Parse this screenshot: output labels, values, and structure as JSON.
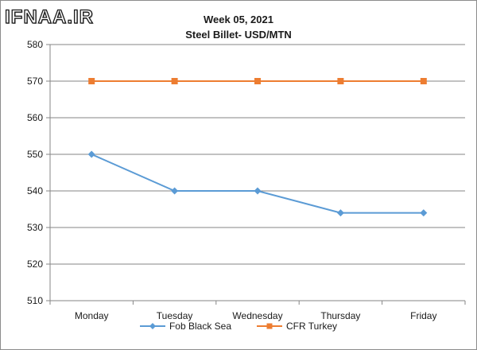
{
  "watermark": "IFNAA.IR",
  "chart_data": {
    "type": "line",
    "title": "Week 05, 2021",
    "subtitle": "Steel Billet- USD/MTN",
    "categories": [
      "Monday",
      "Tuesday",
      "Wednesday",
      "Thursday",
      "Friday"
    ],
    "yticks": [
      "510",
      "520",
      "530",
      "540",
      "550",
      "560",
      "570",
      "580"
    ],
    "ylim": [
      510,
      580
    ],
    "grid": true,
    "legend_position": "bottom",
    "series": [
      {
        "name": "Fob Black Sea",
        "values": [
          550,
          540,
          540,
          534,
          534
        ],
        "color": "#5b9bd5",
        "marker": "diamond"
      },
      {
        "name": "CFR Turkey",
        "values": [
          570,
          570,
          570,
          570,
          570
        ],
        "color": "#ed7d31",
        "marker": "square"
      }
    ]
  }
}
